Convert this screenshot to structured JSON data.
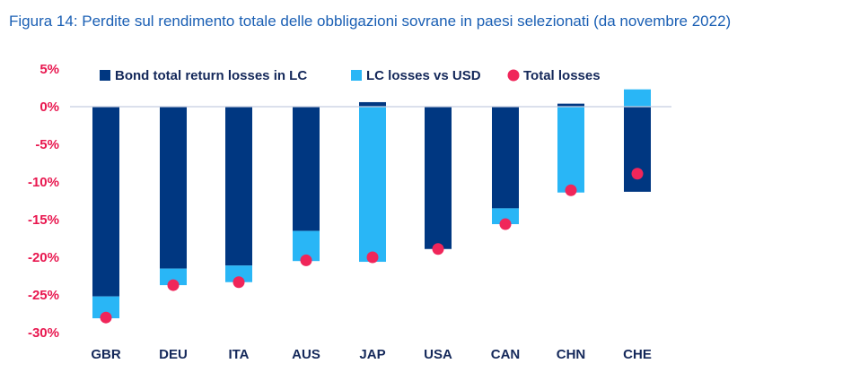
{
  "chart_data": {
    "type": "bar",
    "title": "Figura 14: Perdite sul rendimento totale delle obbligazioni sovrane in paesi selezionati (da novembre 2022)",
    "categories": [
      "GBR",
      "DEU",
      "ITA",
      "AUS",
      "JAP",
      "USA",
      "CAN",
      "CHN",
      "CHE"
    ],
    "series": [
      {
        "name": "Bond total return losses in LC",
        "type": "bar",
        "color": "#003781",
        "values": [
          -25.2,
          -21.5,
          -21.1,
          -16.5,
          0.6,
          -18.9,
          -13.5,
          0.4,
          -11.3
        ]
      },
      {
        "name": "LC losses vs USD",
        "type": "bar",
        "color": "#29b6f6",
        "values": [
          -2.9,
          -2.2,
          -2.2,
          -4.0,
          -20.6,
          0.0,
          -2.1,
          -11.4,
          2.3
        ]
      },
      {
        "name": "Total losses",
        "type": "scatter",
        "color": "#f0265a",
        "values": [
          -28.0,
          -23.7,
          -23.3,
          -20.4,
          -20.0,
          -18.9,
          -15.6,
          -11.1,
          -8.9
        ]
      }
    ],
    "yticks": [
      "5%",
      "0%",
      "-5%",
      "-10%",
      "-15%",
      "-20%",
      "-25%",
      "-30%"
    ],
    "ytick_values": [
      5,
      0,
      -5,
      -10,
      -15,
      -20,
      -25,
      -30
    ],
    "ylim": [
      -30,
      5
    ],
    "legend": "top",
    "grid": false
  }
}
